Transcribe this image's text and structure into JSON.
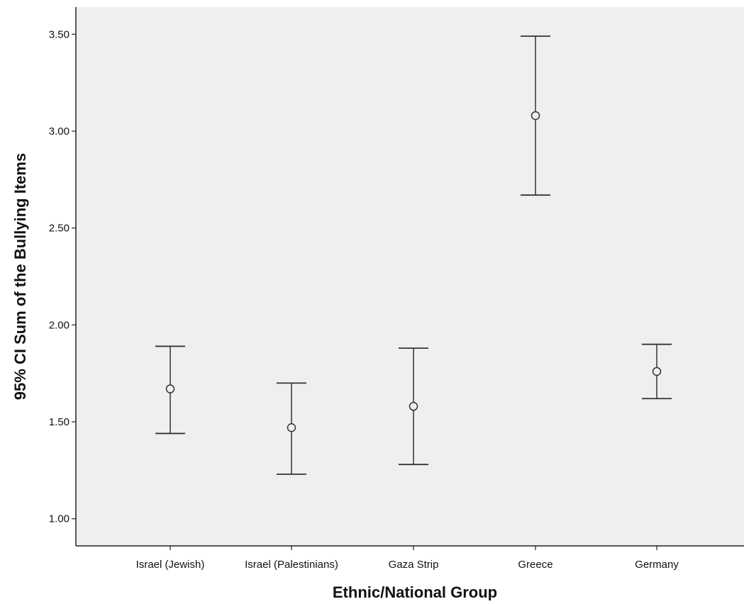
{
  "chart_data": {
    "type": "errorbar",
    "xlabel": "Ethnic/National Group",
    "ylabel": "95% CI Sum of the Bullying Items",
    "categories": [
      "Israel (Jewish)",
      "Israel (Palestinians)",
      "Gaza Strip",
      "Greece",
      "Germany"
    ],
    "series": [
      {
        "mean": [
          1.67,
          1.47,
          1.58,
          3.08,
          1.76
        ],
        "lower": [
          1.44,
          1.23,
          1.28,
          2.67,
          1.62
        ],
        "upper": [
          1.89,
          1.7,
          1.88,
          3.49,
          1.9
        ]
      }
    ],
    "ylim": [
      0.86,
      3.64
    ],
    "yticks": [
      1.0,
      1.5,
      2.0,
      2.5,
      3.0,
      3.5
    ],
    "ytick_labels": [
      "1.00",
      "1.50",
      "2.00",
      "2.50",
      "3.00",
      "3.50"
    ],
    "grid": false,
    "legend": "none",
    "colors": {
      "plot_background": "#efefef",
      "axis": "#222222",
      "marker": "#333333",
      "text": "#111111"
    }
  }
}
